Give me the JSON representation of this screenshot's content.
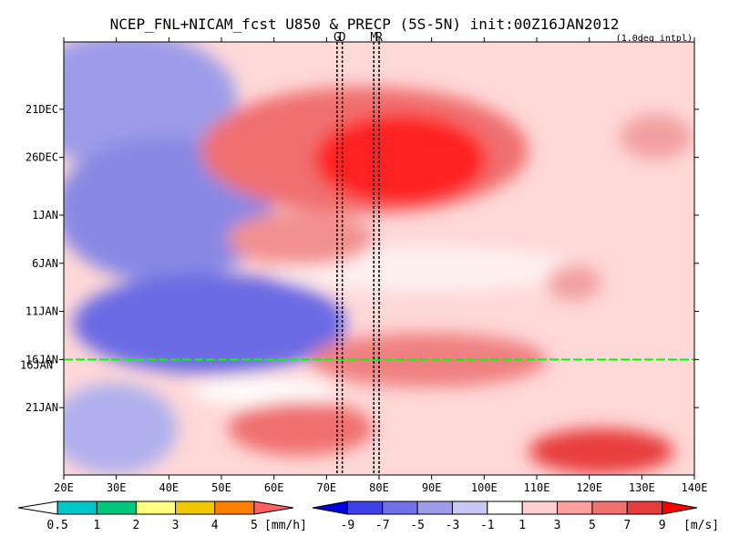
{
  "chart_data": {
    "type": "heatmap",
    "title": "NCEP_FNL+NICAM_fcst U850 & PRECP (5S-5N) init:00Z16JAN2012",
    "note": "(1.0deg intpl)",
    "x_axis": {
      "ticks": [
        "20E",
        "30E",
        "40E",
        "50E",
        "60E",
        "70E",
        "80E",
        "90E",
        "100E",
        "110E",
        "120E",
        "130E",
        "140E"
      ],
      "range": [
        20,
        140
      ]
    },
    "y_axis": {
      "ticks": [
        "21DEC",
        "26DEC",
        "1JAN",
        "6JAN",
        "11JAN",
        "16JAN",
        "21JAN"
      ],
      "range_days_from_21DEC": [
        -7,
        38
      ],
      "reversed": true
    },
    "markers": [
      {
        "label": "G",
        "lon": 72
      },
      {
        "label": "D",
        "lon": 73
      },
      {
        "label": "M",
        "lon": 79
      },
      {
        "label": "R",
        "lon": 80
      }
    ],
    "init_line": "16JAN",
    "series": [
      {
        "name": "U850",
        "unit": "[m/s]"
      },
      {
        "name": "PRECP",
        "unit": "[mm/h]"
      }
    ],
    "precip_colorbar": {
      "unit": "[mm/h]",
      "labels": [
        "0.5",
        "1",
        "2",
        "3",
        "4",
        "5"
      ],
      "colors": [
        "#ffffff",
        "#00c8c8",
        "#00c87d",
        "#ffff80",
        "#f0c800",
        "#ff8000",
        "#ff6060"
      ]
    },
    "wind_colorbar": {
      "unit": "[m/s]",
      "labels": [
        "-9",
        "-7",
        "-5",
        "-3",
        "-1",
        "1",
        "3",
        "5",
        "7",
        "9"
      ],
      "colors": [
        "#0000e0",
        "#4040e8",
        "#7070e8",
        "#9c9ce8",
        "#c8c8f4",
        "#ffffff",
        "#ffd0d0",
        "#ffa0a0",
        "#f27070",
        "#e83c3c",
        "#ff0000"
      ]
    }
  }
}
